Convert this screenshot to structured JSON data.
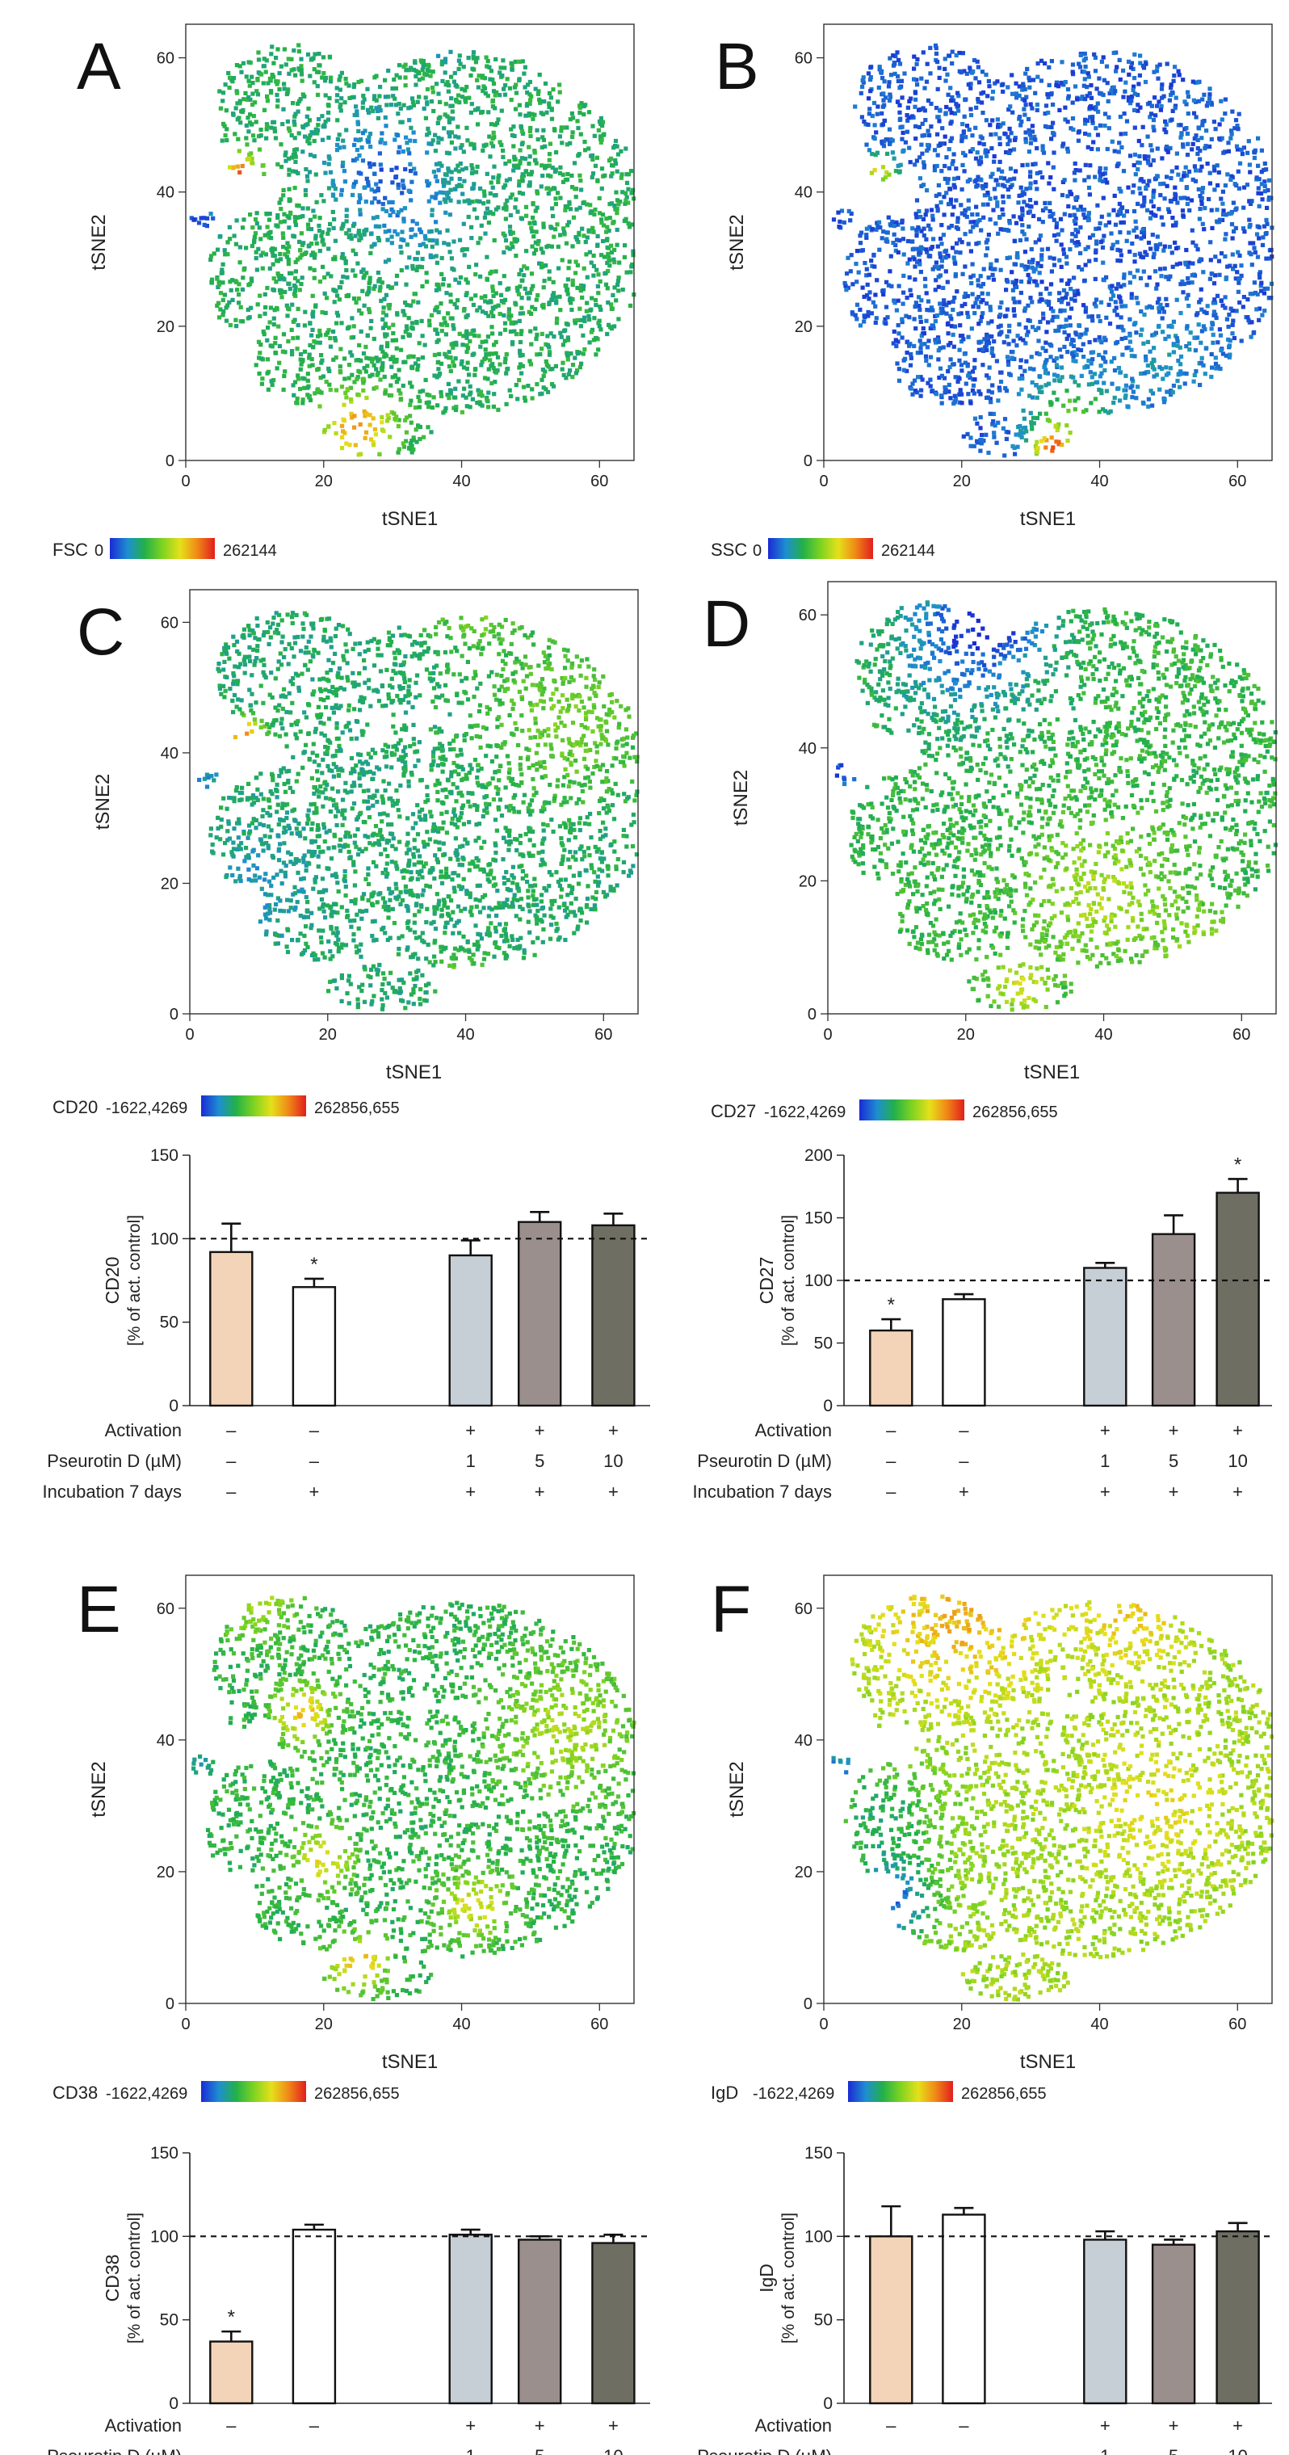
{
  "figure": {
    "colorbar_colors": [
      "#1a2ad6",
      "#1e8fd0",
      "#22b04a",
      "#7ed321",
      "#e6e01a",
      "#f08a17",
      "#e21d1d"
    ]
  },
  "chart_data": [
    {
      "type": "scatter",
      "panel": "A",
      "xlabel": "tSNE1",
      "ylabel": "tSNE2",
      "xlim": [
        0,
        65
      ],
      "ylim": [
        0,
        65
      ],
      "xticks": [
        0,
        20,
        40,
        60
      ],
      "yticks": [
        0,
        20,
        40,
        60
      ],
      "marker": "FSC",
      "scale_min": "0",
      "scale_max": "262144",
      "base_level": 0.32,
      "hotspots": [
        {
          "x": 28,
          "y": 44,
          "r": 8,
          "d": -0.2
        },
        {
          "x": 34,
          "y": 36,
          "r": 9,
          "d": -0.1
        },
        {
          "x": 8,
          "y": 43,
          "r": 2.5,
          "d": 0.55
        },
        {
          "x": 25,
          "y": 5,
          "r": 5,
          "d": 0.5
        },
        {
          "x": 2,
          "y": 36,
          "r": 3,
          "d": -0.3
        },
        {
          "x": 38,
          "y": 63,
          "r": 3,
          "d": -0.25
        },
        {
          "x": 40,
          "y": 3,
          "r": 3,
          "d": 0.25
        }
      ]
    },
    {
      "type": "scatter",
      "panel": "B",
      "xlabel": "tSNE1",
      "ylabel": "tSNE2",
      "xlim": [
        0,
        65
      ],
      "ylim": [
        0,
        65
      ],
      "xticks": [
        0,
        20,
        40,
        60
      ],
      "yticks": [
        0,
        20,
        40,
        60
      ],
      "marker": "SSC",
      "scale_min": "0",
      "scale_max": "262144",
      "base_level": 0.08,
      "hotspots": [
        {
          "x": 36,
          "y": 7,
          "r": 6,
          "d": 0.35
        },
        {
          "x": 33,
          "y": 2,
          "r": 3,
          "d": 0.7
        },
        {
          "x": 50,
          "y": 15,
          "r": 7,
          "d": 0.12
        },
        {
          "x": 8,
          "y": 43,
          "r": 2.5,
          "d": 0.6
        }
      ]
    },
    {
      "type": "scatter",
      "panel": "C",
      "xlabel": "tSNE1",
      "ylabel": "tSNE2",
      "xlim": [
        0,
        65
      ],
      "ylim": [
        0,
        65
      ],
      "xticks": [
        0,
        20,
        40,
        60
      ],
      "yticks": [
        0,
        20,
        40,
        60
      ],
      "marker": "CD20",
      "scale_min": "-1622,4269",
      "scale_max": "262856,655",
      "base_level": 0.3,
      "hotspots": [
        {
          "x": 55,
          "y": 45,
          "r": 12,
          "d": 0.18
        },
        {
          "x": 42,
          "y": 62,
          "r": 6,
          "d": 0.2
        },
        {
          "x": 40,
          "y": 4,
          "r": 4,
          "d": 0.25
        },
        {
          "x": 10,
          "y": 20,
          "r": 8,
          "d": -0.1
        },
        {
          "x": 8,
          "y": 43,
          "r": 2.5,
          "d": 0.55
        },
        {
          "x": 2,
          "y": 36,
          "r": 3,
          "d": -0.12
        }
      ]
    },
    {
      "type": "scatter",
      "panel": "D",
      "xlabel": "tSNE1",
      "ylabel": "tSNE2",
      "xlim": [
        0,
        65
      ],
      "ylim": [
        0,
        65
      ],
      "xticks": [
        0,
        20,
        40,
        60
      ],
      "yticks": [
        0,
        20,
        40,
        60
      ],
      "marker": "CD27",
      "scale_min": "-1622,4269",
      "scale_max": "262856,655",
      "base_level": 0.36,
      "hotspots": [
        {
          "x": 20,
          "y": 56,
          "r": 11,
          "d": -0.28
        },
        {
          "x": 25,
          "y": 62,
          "r": 6,
          "d": -0.25
        },
        {
          "x": 40,
          "y": 18,
          "r": 10,
          "d": 0.22
        },
        {
          "x": 55,
          "y": 10,
          "r": 5,
          "d": 0.2
        },
        {
          "x": 28,
          "y": 4,
          "r": 4,
          "d": 0.3
        },
        {
          "x": 2,
          "y": 36,
          "r": 3,
          "d": -0.35
        }
      ]
    },
    {
      "type": "bar",
      "panel": "CD20",
      "ylabel_line1": "CD20",
      "ylabel_line2": "[% of act. control]",
      "ylim": [
        0,
        150
      ],
      "yticks": [
        0,
        50,
        100,
        150
      ],
      "reference_line": 100,
      "categories": [
        "1",
        "2",
        "3",
        "4",
        "5"
      ],
      "values": [
        92,
        71,
        90,
        110,
        108
      ],
      "errors": [
        17,
        5,
        9,
        6,
        7
      ],
      "significant": [
        false,
        true,
        false,
        false,
        false
      ],
      "colors": [
        "#f4d4b8",
        "#ffffff",
        "#c7cfd6",
        "#9b8f8e",
        "#6e6e62"
      ]
    },
    {
      "type": "bar",
      "panel": "CD27",
      "ylabel_line1": "CD27",
      "ylabel_line2": "[% of act. control]",
      "ylim": [
        0,
        200
      ],
      "yticks": [
        0,
        50,
        100,
        150,
        200
      ],
      "reference_line": 100,
      "categories": [
        "1",
        "2",
        "3",
        "4",
        "5"
      ],
      "values": [
        60,
        85,
        110,
        137,
        170
      ],
      "errors": [
        9,
        4,
        4,
        15,
        11
      ],
      "significant": [
        true,
        false,
        false,
        false,
        true
      ],
      "colors": [
        "#f4d4b8",
        "#ffffff",
        "#c7cfd6",
        "#9b8f8e",
        "#6e6e62"
      ]
    },
    {
      "type": "scatter",
      "panel": "E",
      "xlabel": "tSNE1",
      "ylabel": "tSNE2",
      "xlim": [
        0,
        65
      ],
      "ylim": [
        0,
        65
      ],
      "xticks": [
        0,
        20,
        40,
        60
      ],
      "yticks": [
        0,
        20,
        40,
        60
      ],
      "marker": "CD38",
      "scale_min": "-1622,4269",
      "scale_max": "262856,655",
      "base_level": 0.35,
      "hotspots": [
        {
          "x": 17,
          "y": 44,
          "r": 4,
          "d": 0.4
        },
        {
          "x": 20,
          "y": 22,
          "r": 4,
          "d": 0.35
        },
        {
          "x": 42,
          "y": 15,
          "r": 5,
          "d": 0.3
        },
        {
          "x": 55,
          "y": 42,
          "r": 10,
          "d": 0.22
        },
        {
          "x": 25,
          "y": 6,
          "r": 4,
          "d": 0.4
        },
        {
          "x": 10,
          "y": 62,
          "r": 6,
          "d": 0.25
        },
        {
          "x": 2,
          "y": 36,
          "r": 3,
          "d": -0.12
        }
      ]
    },
    {
      "type": "scatter",
      "panel": "F",
      "xlabel": "tSNE1",
      "ylabel": "tSNE2",
      "xlim": [
        0,
        65
      ],
      "ylim": [
        0,
        65
      ],
      "xticks": [
        0,
        20,
        40,
        60
      ],
      "yticks": [
        0,
        20,
        40,
        60
      ],
      "marker": "IgD",
      "scale_min": "-1622,4269",
      "scale_max": "262856,655",
      "base_level": 0.55,
      "hotspots": [
        {
          "x": 20,
          "y": 58,
          "r": 12,
          "d": 0.2
        },
        {
          "x": 45,
          "y": 58,
          "r": 8,
          "d": 0.15
        },
        {
          "x": 48,
          "y": 30,
          "r": 10,
          "d": 0.12
        },
        {
          "x": 8,
          "y": 28,
          "r": 9,
          "d": -0.25
        },
        {
          "x": 10,
          "y": 15,
          "r": 6,
          "d": -0.45
        },
        {
          "x": 2,
          "y": 36,
          "r": 3,
          "d": -0.35
        }
      ]
    },
    {
      "type": "bar",
      "panel": "CD38",
      "ylabel_line1": "CD38",
      "ylabel_line2": "[% of act. control]",
      "ylim": [
        0,
        150
      ],
      "yticks": [
        0,
        50,
        100,
        150
      ],
      "reference_line": 100,
      "categories": [
        "1",
        "2",
        "3",
        "4",
        "5"
      ],
      "values": [
        37,
        104,
        101,
        98,
        96
      ],
      "errors": [
        6,
        3,
        3,
        2,
        5
      ],
      "significant": [
        true,
        false,
        false,
        false,
        false
      ],
      "colors": [
        "#f4d4b8",
        "#ffffff",
        "#c7cfd6",
        "#9b8f8e",
        "#6e6e62"
      ]
    },
    {
      "type": "bar",
      "panel": "IgD",
      "ylabel_line1": "IgD",
      "ylabel_line2": "[% of act. control]",
      "ylim": [
        0,
        150
      ],
      "yticks": [
        0,
        50,
        100,
        150
      ],
      "reference_line": 100,
      "categories": [
        "1",
        "2",
        "3",
        "4",
        "5"
      ],
      "values": [
        100,
        113,
        98,
        95,
        103
      ],
      "errors": [
        18,
        4,
        5,
        3,
        5
      ],
      "significant": [
        false,
        false,
        false,
        false,
        false
      ],
      "colors": [
        "#f4d4b8",
        "#ffffff",
        "#c7cfd6",
        "#9b8f8e",
        "#6e6e62"
      ]
    }
  ],
  "condition_table": {
    "rows": [
      {
        "label": "Activation",
        "values": [
          "–",
          "–",
          "+",
          "+",
          "+"
        ]
      },
      {
        "label": "Pseurotin D (µM)",
        "values": [
          "–",
          "–",
          "1",
          "5",
          "10"
        ]
      },
      {
        "label": "Incubation 7 days",
        "values": [
          "–",
          "+",
          "+",
          "+",
          "+"
        ]
      }
    ]
  },
  "significance_marker": "*"
}
